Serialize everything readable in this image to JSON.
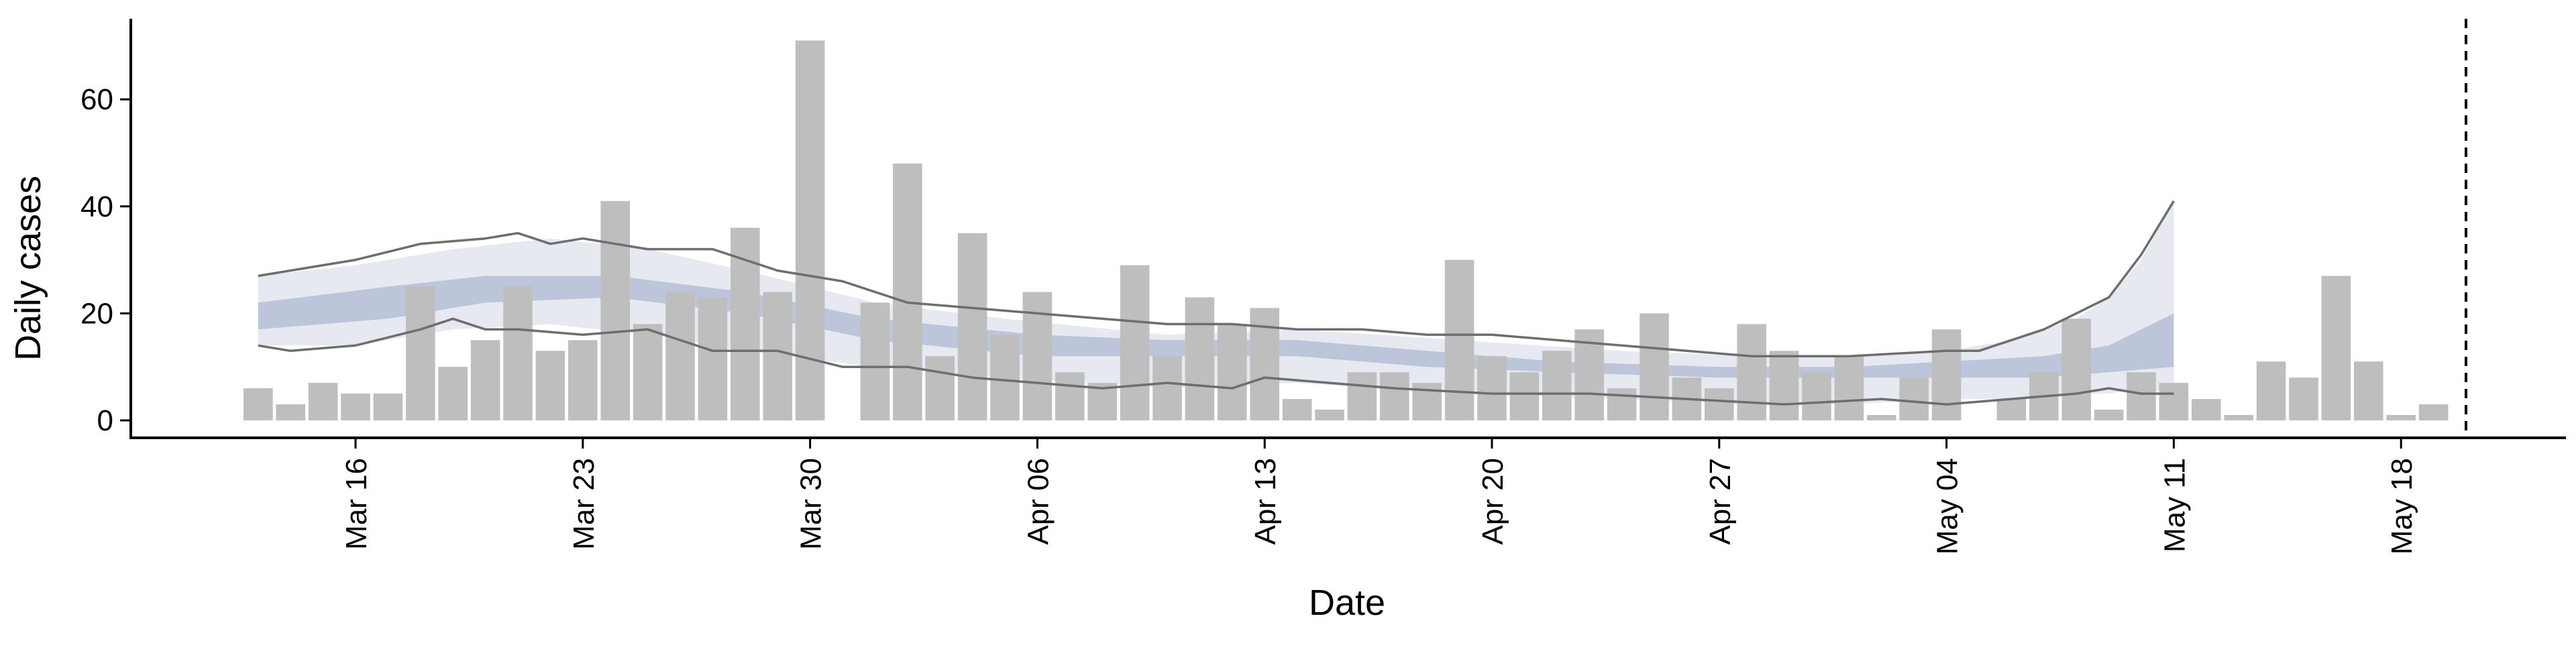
{
  "chart_data": {
    "type": "bar",
    "title": "",
    "xlabel": "Date",
    "ylabel": "Daily cases",
    "x_axis": {
      "start": "2020-03-13",
      "end": "2020-05-19",
      "ticks": [
        "2020-03-16",
        "2020-03-23",
        "2020-03-30",
        "2020-04-06",
        "2020-04-13",
        "2020-04-20",
        "2020-04-27",
        "2020-05-04",
        "2020-05-11",
        "2020-05-18"
      ],
      "tick_labels": [
        "Mar 16",
        "Mar 23",
        "Mar 30",
        "Apr 06",
        "Apr 13",
        "Apr 20",
        "Apr 27",
        "May 04",
        "May 11",
        "May 18"
      ]
    },
    "y_axis": {
      "range": [
        -3,
        75
      ],
      "ticks": [
        0,
        20,
        40,
        60
      ],
      "tick_labels": [
        "0",
        "20",
        "40",
        "60"
      ]
    },
    "grid": false,
    "legend": "none",
    "series": [
      {
        "type": "bar",
        "x": [
          "2020-03-13",
          "2020-03-14",
          "2020-03-15",
          "2020-03-16",
          "2020-03-17",
          "2020-03-18",
          "2020-03-19",
          "2020-03-20",
          "2020-03-21",
          "2020-03-22",
          "2020-03-23",
          "2020-03-24",
          "2020-03-25",
          "2020-03-26",
          "2020-03-27",
          "2020-03-28",
          "2020-03-29",
          "2020-03-30",
          "2020-03-31",
          "2020-04-01",
          "2020-04-02",
          "2020-04-03",
          "2020-04-04",
          "2020-04-05",
          "2020-04-06",
          "2020-04-07",
          "2020-04-08",
          "2020-04-09",
          "2020-04-10",
          "2020-04-11",
          "2020-04-12",
          "2020-04-13",
          "2020-04-14",
          "2020-04-15",
          "2020-04-16",
          "2020-04-17",
          "2020-04-18",
          "2020-04-19",
          "2020-04-20",
          "2020-04-21",
          "2020-04-22",
          "2020-04-23",
          "2020-04-24",
          "2020-04-25",
          "2020-04-26",
          "2020-04-27",
          "2020-04-28",
          "2020-04-29",
          "2020-04-30",
          "2020-05-01",
          "2020-05-02",
          "2020-05-03",
          "2020-05-04",
          "2020-05-05",
          "2020-05-06",
          "2020-05-07",
          "2020-05-08",
          "2020-05-09",
          "2020-05-10",
          "2020-05-11",
          "2020-05-12",
          "2020-05-13",
          "2020-05-14",
          "2020-05-15",
          "2020-05-16",
          "2020-05-17",
          "2020-05-18",
          "2020-05-19",
          "2020-05-20"
        ],
        "y": [
          6,
          3,
          7,
          5,
          5,
          25,
          10,
          15,
          25,
          13,
          15,
          41,
          18,
          24,
          23,
          36,
          24,
          71,
          0,
          22,
          48,
          12,
          35,
          16,
          24,
          9,
          7,
          29,
          12,
          23,
          18,
          21,
          4,
          2,
          9,
          9,
          7,
          30,
          12,
          9,
          13,
          17,
          6,
          20,
          8,
          6,
          18,
          13,
          9,
          12,
          1,
          8,
          17,
          0,
          4,
          9,
          19,
          2,
          9,
          7,
          4,
          1,
          11,
          8,
          27,
          11,
          1,
          3,
          0
        ],
        "color": "#bebebe"
      },
      {
        "type": "area",
        "name": "",
        "x": [
          "2020-03-13",
          "2020-03-17",
          "2020-03-20",
          "2020-03-24",
          "2020-03-28",
          "2020-04-01",
          "2020-04-06",
          "2020-04-10",
          "2020-04-14",
          "2020-04-18",
          "2020-04-22",
          "2020-04-27",
          "2020-05-01",
          "2020-05-04",
          "2020-05-07",
          "2020-05-09",
          "2020-05-11"
        ],
        "y_low": [
          17,
          19,
          22,
          23,
          20,
          15,
          12,
          12,
          12,
          10,
          9,
          8,
          8,
          8,
          8,
          9,
          10
        ],
        "y_high": [
          22,
          25,
          27,
          27,
          24,
          19,
          16,
          15,
          15,
          13,
          11,
          10,
          10,
          11,
          12,
          14,
          20
        ],
        "color": "#b3bcd6"
      },
      {
        "type": "area",
        "name": "",
        "x": [
          "2020-03-13",
          "2020-03-16",
          "2020-03-19",
          "2020-03-22",
          "2020-03-25",
          "2020-03-28",
          "2020-04-01",
          "2020-04-05",
          "2020-04-10",
          "2020-04-14",
          "2020-04-19",
          "2020-04-24",
          "2020-04-28",
          "2020-05-01",
          "2020-05-04",
          "2020-05-06",
          "2020-05-08",
          "2020-05-09",
          "2020-05-10",
          "2020-05-11"
        ],
        "y_low": [
          14,
          14,
          17,
          18,
          16,
          13,
          10,
          8,
          6,
          7,
          5,
          4,
          3,
          3,
          4,
          4,
          5,
          5,
          6,
          5
        ],
        "y_high": [
          27,
          29,
          32,
          34,
          32,
          28,
          22,
          19,
          16,
          17,
          15,
          13,
          12,
          12,
          13,
          15,
          19,
          23,
          30,
          41
        ],
        "color": "#dfe2ec"
      },
      {
        "type": "line",
        "name": "",
        "x": [
          "2020-03-13",
          "2020-03-16",
          "2020-03-18",
          "2020-03-20",
          "2020-03-21",
          "2020-03-22",
          "2020-03-23",
          "2020-03-24",
          "2020-03-25",
          "2020-03-27",
          "2020-03-28",
          "2020-03-29",
          "2020-03-31",
          "2020-04-02",
          "2020-04-04",
          "2020-04-06",
          "2020-04-08",
          "2020-04-10",
          "2020-04-12",
          "2020-04-14",
          "2020-04-16",
          "2020-04-18",
          "2020-04-20",
          "2020-04-22",
          "2020-04-24",
          "2020-04-26",
          "2020-04-28",
          "2020-05-01",
          "2020-05-04",
          "2020-05-05",
          "2020-05-06",
          "2020-05-07",
          "2020-05-08",
          "2020-05-09",
          "2020-05-10",
          "2020-05-11"
        ],
        "y": [
          27,
          30,
          33,
          34,
          35,
          33,
          34,
          33,
          32,
          32,
          30,
          28,
          26,
          22,
          21,
          20,
          19,
          18,
          18,
          17,
          17,
          16,
          16,
          15,
          14,
          13,
          12,
          12,
          13,
          13,
          15,
          17,
          20,
          23,
          31,
          41
        ],
        "color": "#6e6e6e"
      },
      {
        "type": "line",
        "name": "",
        "x": [
          "2020-03-13",
          "2020-03-14",
          "2020-03-16",
          "2020-03-18",
          "2020-03-19",
          "2020-03-20",
          "2020-03-21",
          "2020-03-23",
          "2020-03-25",
          "2020-03-27",
          "2020-03-29",
          "2020-03-31",
          "2020-04-02",
          "2020-04-04",
          "2020-04-06",
          "2020-04-08",
          "2020-04-10",
          "2020-04-12",
          "2020-04-13",
          "2020-04-15",
          "2020-04-17",
          "2020-04-20",
          "2020-04-23",
          "2020-04-26",
          "2020-04-29",
          "2020-05-02",
          "2020-05-04",
          "2020-05-06",
          "2020-05-08",
          "2020-05-09",
          "2020-05-10",
          "2020-05-11"
        ],
        "y": [
          14,
          13,
          14,
          17,
          19,
          17,
          17,
          16,
          17,
          13,
          13,
          10,
          10,
          8,
          7,
          6,
          7,
          6,
          8,
          7,
          6,
          5,
          5,
          4,
          3,
          4,
          3,
          4,
          5,
          6,
          5,
          5
        ],
        "color": "#6e6e6e"
      }
    ],
    "vline": {
      "x": "2020-05-20",
      "style": "dashed",
      "color": "#000000"
    }
  }
}
